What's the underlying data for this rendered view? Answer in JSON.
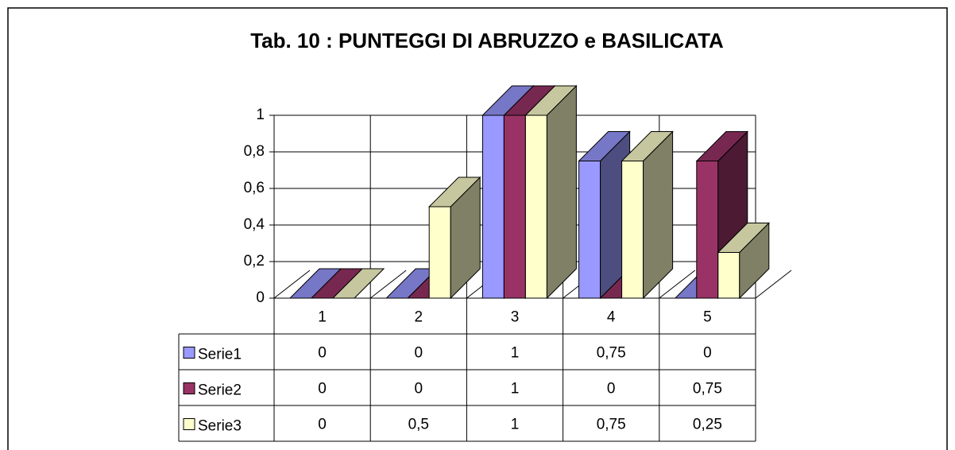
{
  "chart_data": {
    "type": "bar3d",
    "title": "Tab. 10 : PUNTEGGI DI ABRUZZO e BASILICATA",
    "categories": [
      "1",
      "2",
      "3",
      "4",
      "5"
    ],
    "series": [
      {
        "name": "Serie1",
        "color": "#9999ff",
        "values": [
          0,
          0,
          1,
          0.75,
          0
        ],
        "value_labels": [
          "0",
          "0",
          "1",
          "0,75",
          "0"
        ]
      },
      {
        "name": "Serie2",
        "color": "#993366",
        "values": [
          0,
          0,
          1,
          0,
          0.75
        ],
        "value_labels": [
          "0",
          "0",
          "1",
          "0",
          "0,75"
        ]
      },
      {
        "name": "Serie3",
        "color": "#ffffcc",
        "values": [
          0,
          0.5,
          1,
          0.75,
          0.25
        ],
        "value_labels": [
          "0",
          "0,5",
          "1",
          "0,75",
          "0,25"
        ]
      }
    ],
    "ylim": [
      0,
      1
    ],
    "yticks": [
      0,
      {
        "value": 0.2,
        "label": "0,2"
      },
      {
        "value": 0.4,
        "label": "0,4"
      },
      {
        "value": 0.6,
        "label": "0,6"
      },
      {
        "value": 0.8,
        "label": "0,8"
      },
      1
    ],
    "grid": true
  }
}
